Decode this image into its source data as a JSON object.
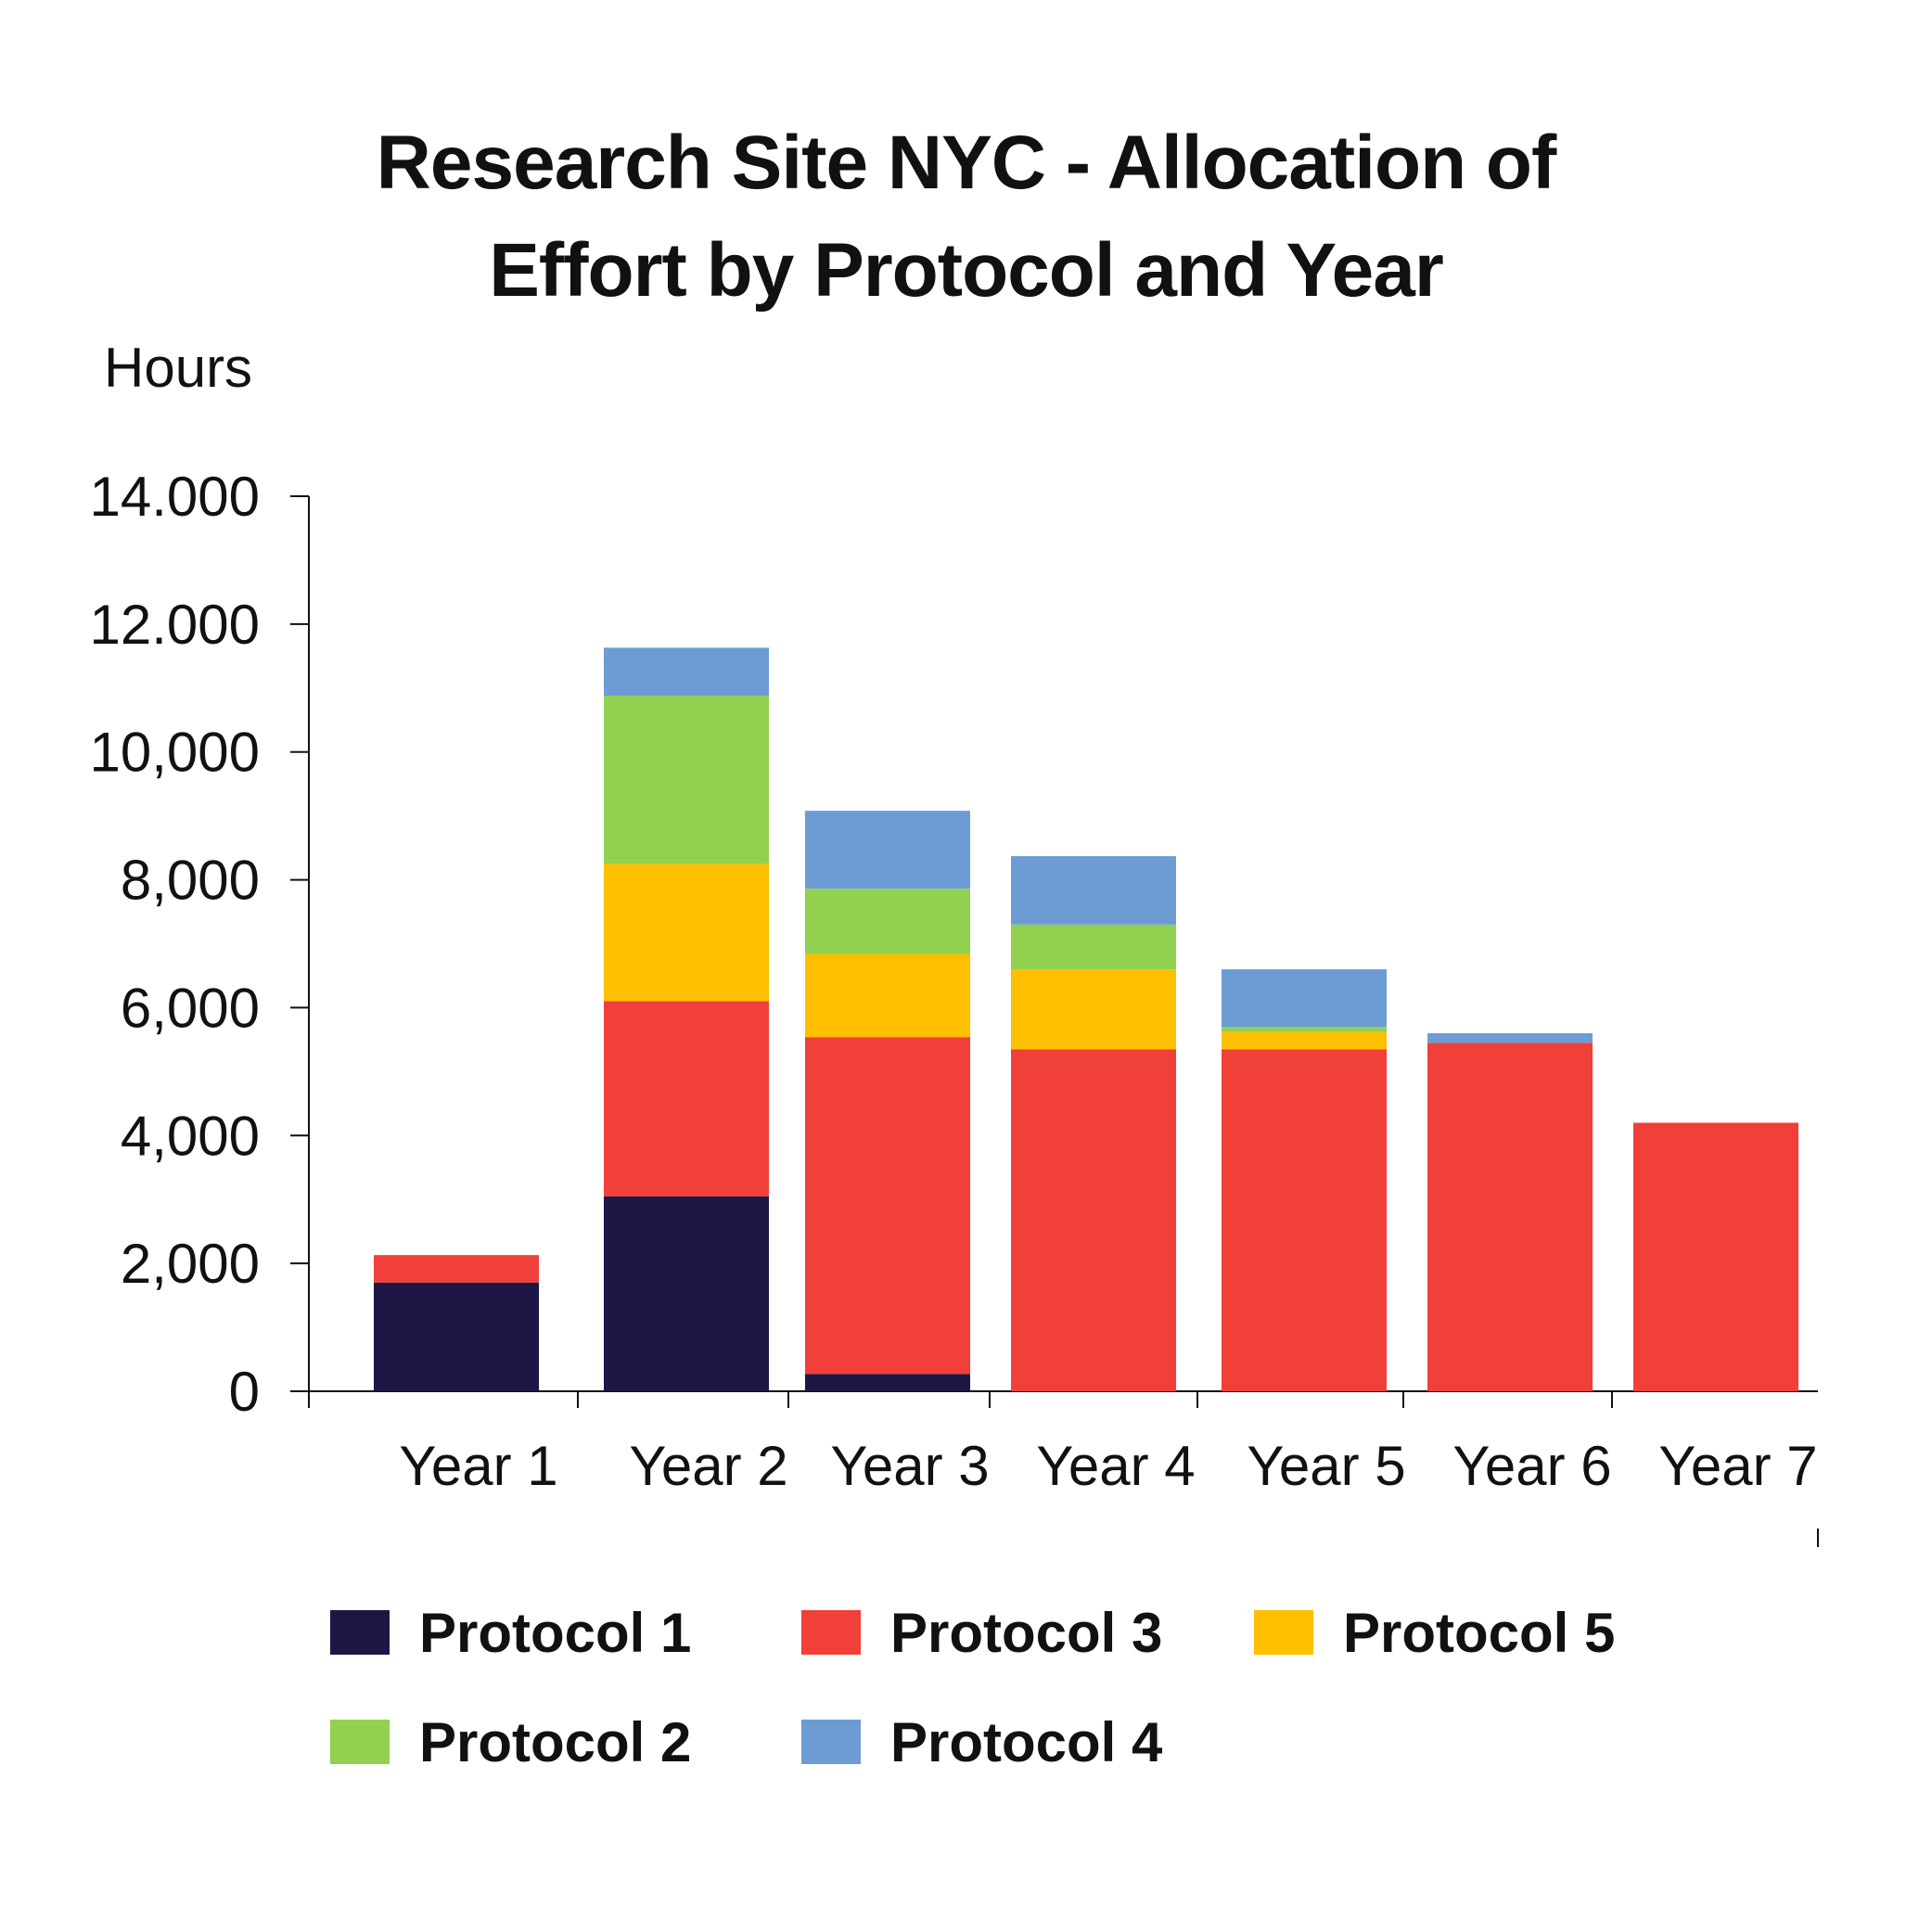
{
  "chart_data": {
    "type": "bar",
    "stacked": true,
    "title_lines": [
      "Research Site NYC - Allocation of",
      "Effort by Protocol and Year"
    ],
    "ylabel": "Hours",
    "xlabel": "",
    "ylim": [
      0,
      14000
    ],
    "yticks": [
      {
        "value": 0,
        "label": "0"
      },
      {
        "value": 2000,
        "label": "2,000"
      },
      {
        "value": 4000,
        "label": "4,000"
      },
      {
        "value": 6000,
        "label": "6,000"
      },
      {
        "value": 8000,
        "label": "8,000"
      },
      {
        "value": 10000,
        "label": "10,000"
      },
      {
        "value": 12000,
        "label": "12.000"
      },
      {
        "value": 14000,
        "label": "14.000"
      }
    ],
    "categories": [
      "Year 1",
      "Year 2",
      "Year 3",
      "Year 4",
      "Year 5",
      "Year 6",
      "Year 7"
    ],
    "series": [
      {
        "name": "Protocol 1",
        "color": "#1c1744",
        "values": [
          1700,
          3050,
          270,
          0,
          0,
          0,
          0
        ]
      },
      {
        "name": "Protocol 3",
        "color": "#f04039",
        "values": [
          430,
          3050,
          5270,
          5350,
          5350,
          5450,
          4200
        ]
      },
      {
        "name": "Protocol 5",
        "color": "#fdbf00",
        "values": [
          0,
          2150,
          1300,
          1250,
          270,
          0,
          0
        ]
      },
      {
        "name": "Protocol 2",
        "color": "#92d050",
        "values": [
          0,
          2630,
          1020,
          700,
          80,
          0,
          0
        ]
      },
      {
        "name": "Protocol 4",
        "color": "#6d9cd5",
        "values": [
          0,
          750,
          1220,
          1070,
          900,
          150,
          0
        ]
      }
    ],
    "legend": {
      "position": "bottom",
      "order": [
        "Protocol 1",
        "Protocol 3",
        "Protocol 5",
        "Protocol 2",
        "Protocol 4"
      ]
    },
    "grid": false
  }
}
